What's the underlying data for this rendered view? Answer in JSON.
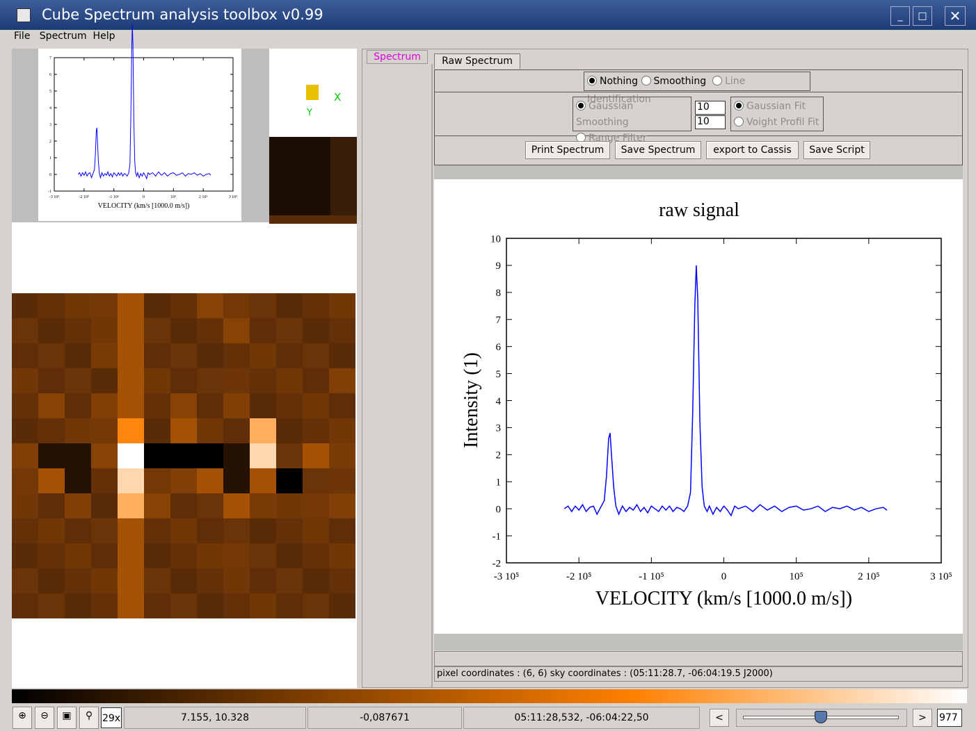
{
  "window": {
    "title": "Cube Spectrum analysis toolbox v0.99"
  },
  "menu": [
    "File",
    "Spectrum",
    "Help"
  ],
  "tabs": {
    "outer": "Spectrum",
    "inner": "Raw Spectrum"
  },
  "modes": [
    "Nothing",
    "Smoothing",
    "Line Identification"
  ],
  "smoothing": [
    "Gaussian Smoothing",
    "Range Filter"
  ],
  "inputs": [
    "10",
    "10"
  ],
  "fits": [
    "Gaussian Fit",
    "Voight Profil Fit"
  ],
  "buttons": [
    "Print Spectrum",
    "Save Spectrum",
    "export to Cassis",
    "Save Script"
  ],
  "status_line": "pixel coordinates : (6, 6) sky coordinates : (05:11:28.7, -06:04:19.5 J2000)",
  "compass": [
    "X",
    "Y"
  ],
  "bottom_bar": {
    "zoom": "29x",
    "pixel": "7.155, 10.328",
    "value": "-0,087671",
    "coords": "05:11:28,532, -06:04:22,50",
    "prev": "<",
    "next": ">",
    "frame": "977"
  },
  "chart_data": {
    "type": "line",
    "title": "raw signal",
    "x_label": "VELOCITY (km/s [1000.0 m/s])",
    "y_label": "Intensity (1)",
    "color": "#0000ff",
    "x": [
      -220000,
      -215000,
      -210000,
      -205000,
      -200000,
      -195000,
      -190000,
      -185000,
      -180000,
      -175000,
      -170000,
      -165000,
      -162000,
      -159000,
      -157000,
      -155000,
      -152000,
      -149000,
      -145000,
      -140000,
      -135000,
      -130000,
      -125000,
      -120000,
      -115000,
      -110000,
      -105000,
      -100000,
      -95000,
      -90000,
      -85000,
      -80000,
      -75000,
      -70000,
      -65000,
      -60000,
      -55000,
      -50000,
      -46000,
      -43000,
      -40000,
      -38000,
      -36000,
      -33000,
      -30000,
      -27000,
      -23000,
      -20000,
      -15000,
      -10000,
      -5000,
      0,
      5000,
      10000,
      15000,
      20000,
      30000,
      40000,
      50000,
      60000,
      70000,
      80000,
      90000,
      100000,
      110000,
      120000,
      130000,
      140000,
      150000,
      160000,
      170000,
      180000,
      190000,
      200000,
      210000,
      220000,
      225000
    ],
    "values": [
      0,
      0.1,
      -0.1,
      0.1,
      -0.05,
      0.15,
      -0.1,
      0.05,
      0.1,
      -0.2,
      0.05,
      0.3,
      1.2,
      2.6,
      2.8,
      2,
      0.8,
      0.1,
      -0.2,
      0.1,
      -0.1,
      0.05,
      -0.05,
      0.15,
      -0.1,
      0.05,
      -0.15,
      0.1,
      0,
      -0.1,
      0.1,
      -0.05,
      0.1,
      -0.1,
      0.05,
      0,
      -0.1,
      0.1,
      0.6,
      3.5,
      7.5,
      9,
      7.8,
      3.2,
      0.8,
      0.1,
      -0.1,
      0.1,
      -0.2,
      0.05,
      -0.1,
      0.1,
      -0.05,
      -0.25,
      0.1,
      0,
      0.1,
      -0.1,
      0.15,
      -0.05,
      0.1,
      -0.1,
      0.05,
      0.1,
      -0.05,
      0,
      0.1,
      -0.1,
      0.05,
      0,
      0.1,
      -0.05,
      0.05,
      -0.1,
      0,
      0.05,
      -0.05
    ],
    "xlim": [
      -300000,
      300000
    ],
    "ylim": [
      -2,
      10
    ],
    "xticks": [
      {
        "value": -300000,
        "label": "-3 10⁵"
      },
      {
        "value": -200000,
        "label": "-2 10⁵"
      },
      {
        "value": -100000,
        "label": "-1 10⁵"
      },
      0,
      {
        "value": 100000,
        "label": "10⁵"
      },
      {
        "value": 200000,
        "label": "2 10⁵"
      },
      {
        "value": 300000,
        "label": "3 10⁵"
      }
    ],
    "yticks": [
      -2,
      -1,
      0,
      1,
      2,
      3,
      4,
      5,
      6,
      7,
      8,
      9,
      10
    ]
  },
  "thumbnail": {
    "ylim": [
      -1,
      7
    ],
    "yticks": [
      -1,
      0,
      1,
      2,
      3,
      4,
      5,
      6,
      7
    ]
  }
}
